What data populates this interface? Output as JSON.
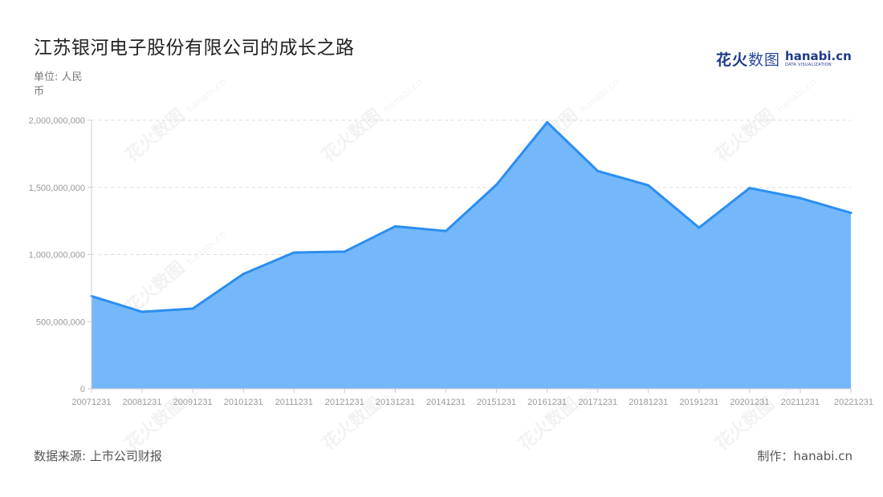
{
  "title": "江苏银河电子股份有限公司的成长之路",
  "unit": "单位: 人民币",
  "source": "数据来源: 上市公司财报",
  "credit": "制作：hanabi.cn",
  "logo": {
    "cn_bold": "花火",
    "cn_thin": "数图",
    "en": "hanabi.cn",
    "tagline": "DATA VISUALIZATION"
  },
  "watermark": {
    "cn": "花火数图",
    "en": "hanabi.cn"
  },
  "colors": {
    "line": "#2b8ef0",
    "area": "#74b8fb",
    "grid": "#dddddd",
    "axis": "#cccccc",
    "tick_text": "#999999"
  },
  "chart_data": {
    "type": "area",
    "title": "江苏银河电子股份有限公司的成长之路",
    "xlabel": "",
    "ylabel": "单位: 人民币",
    "categories": [
      "20071231",
      "20081231",
      "20091231",
      "20101231",
      "20111231",
      "20121231",
      "20131231",
      "20141231",
      "20151231",
      "20161231",
      "20171231",
      "20181231",
      "20191231",
      "20201231",
      "20211231",
      "20221231"
    ],
    "series": [
      {
        "values": [
          690000000,
          573000000,
          597000000,
          855000000,
          1015000000,
          1022000000,
          1210000000,
          1175000000,
          1520000000,
          1985000000,
          1622000000,
          1515000000,
          1200000000,
          1495000000,
          1420000000,
          1310000000
        ]
      }
    ],
    "ylim": [
      0,
      2000000000
    ],
    "yticks": [
      0,
      500000000,
      1000000000,
      1500000000,
      2000000000
    ],
    "ytick_labels": [
      "0",
      "500,000,000",
      "1,000,000,000",
      "1,500,000,000",
      "2,000,000,000"
    ],
    "grid": true,
    "legend": "none"
  }
}
